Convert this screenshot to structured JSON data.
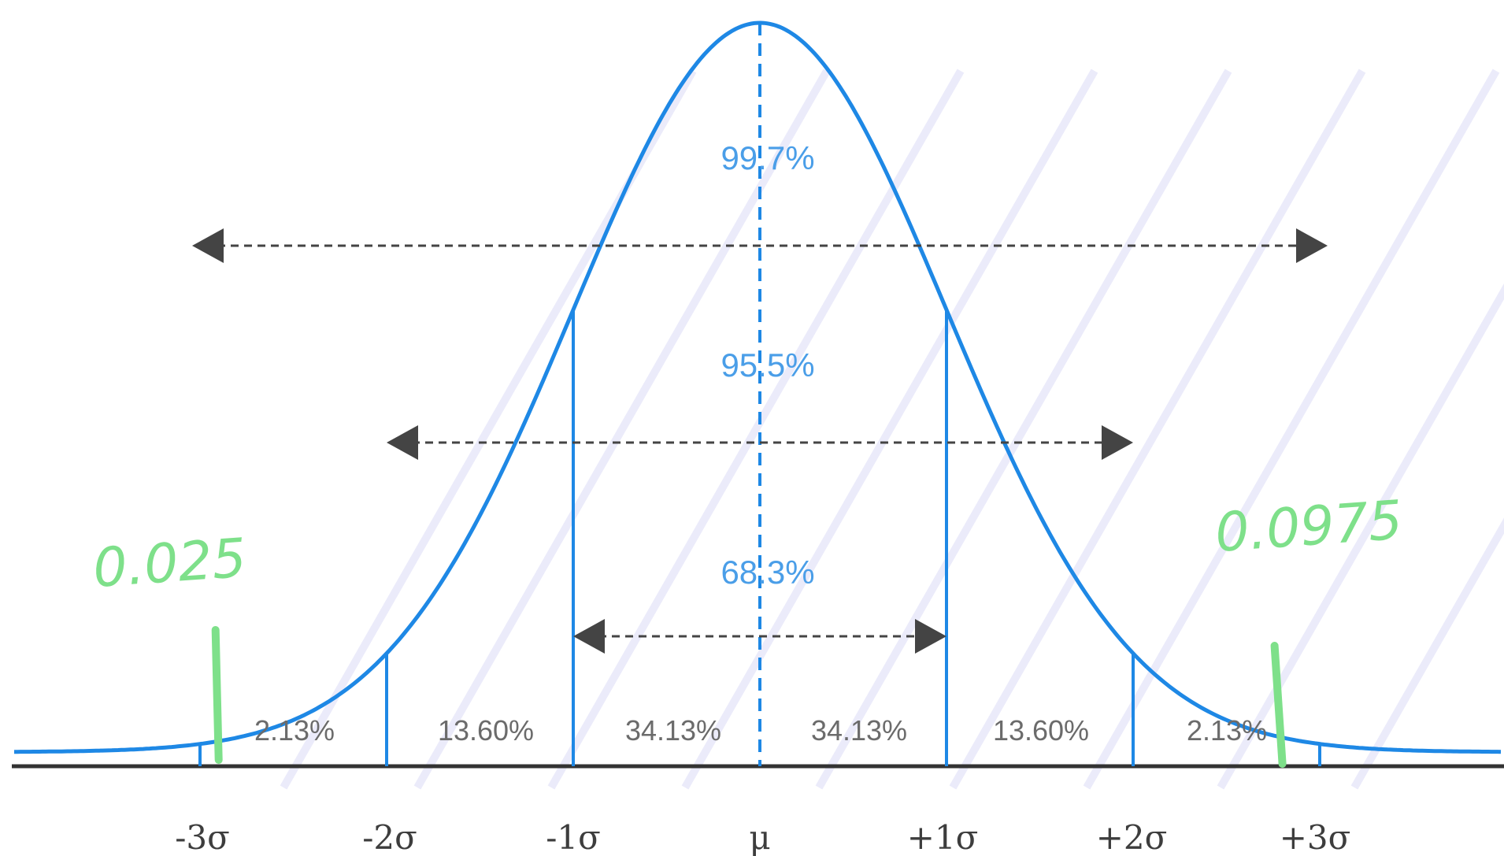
{
  "colors": {
    "curve": "#1e88e5",
    "label_blue": "#4a9ee8",
    "axis": "#333333",
    "arrow": "#444444",
    "segment_text": "#6b6b6b",
    "annotation": "#7ee08a",
    "watermark": "#dcdcf6"
  },
  "tick_labels": [
    "-3σ",
    "-2σ",
    "-1σ",
    "μ",
    "+1σ",
    "+2σ",
    "+3σ"
  ],
  "segments": [
    "2.13%",
    "13.60%",
    "34.13%",
    "34.13%",
    "13.60%",
    "2.13%"
  ],
  "ranges": [
    {
      "label": "99.7%",
      "from_sigma": -3,
      "to_sigma": 3
    },
    {
      "label": "95.5%",
      "from_sigma": -2,
      "to_sigma": 2
    },
    {
      "label": "68.3%",
      "from_sigma": -1,
      "to_sigma": 1
    }
  ],
  "annotations": {
    "left": "0.025",
    "right": "0.0975",
    "left_mark_sigma": -2.9,
    "right_mark_sigma": 2.8
  }
}
